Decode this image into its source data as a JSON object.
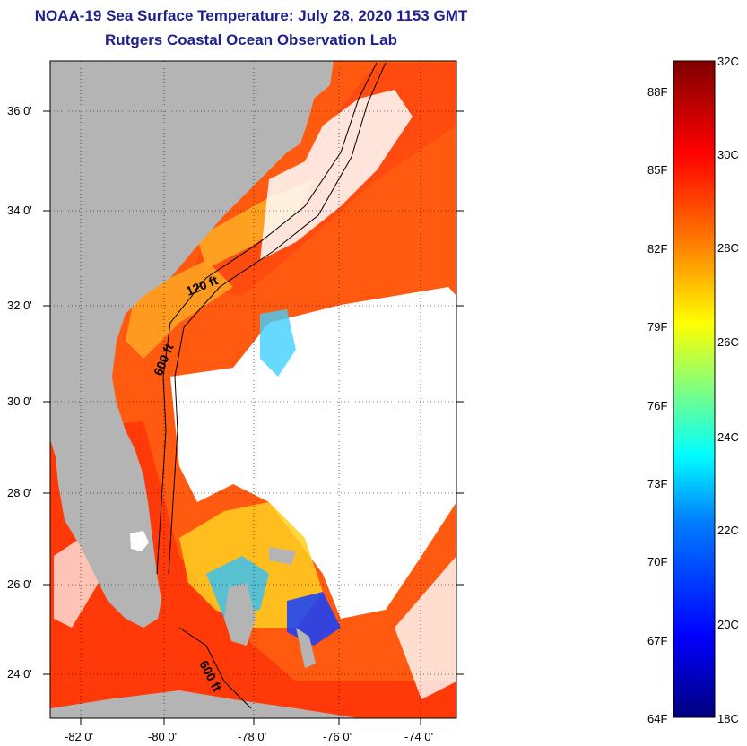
{
  "title_line1": "NOAA-19 Sea Surface Temperature:  July 28, 2020 1153 GMT",
  "title_line2": "Rutgers Coastal Ocean Observation Lab",
  "map": {
    "land_color": "#b4b4b4",
    "cloud_color": "#ffffff",
    "lon_ticks": [
      "-82 0'",
      "-80 0'",
      "-78 0'",
      "-76 0'",
      "-74 0'"
    ],
    "lat_ticks": [
      "36 0'",
      "34 0'",
      "32 0'",
      "30 0'",
      "28 0'",
      "26 0'",
      "24 0'"
    ],
    "lon_range": [
      -83,
      -72.8
    ],
    "lat_range": [
      23,
      37.2
    ],
    "contour_labels": [
      "120 ft",
      "600 ft",
      "600 ft"
    ]
  },
  "colorbar": {
    "celsius_labels": [
      "32C",
      "30C",
      "28C",
      "26C",
      "24C",
      "22C",
      "20C",
      "18C"
    ],
    "fahrenheit_labels": [
      "88F",
      "85F",
      "82F",
      "79F",
      "76F",
      "73F",
      "70F",
      "67F",
      "64F"
    ],
    "range_c": [
      18,
      32
    ],
    "colors": [
      "#00007f",
      "#0000ff",
      "#007fff",
      "#00ffff",
      "#7fff7f",
      "#ffff00",
      "#ff7f00",
      "#ff0000",
      "#7f0000"
    ]
  }
}
